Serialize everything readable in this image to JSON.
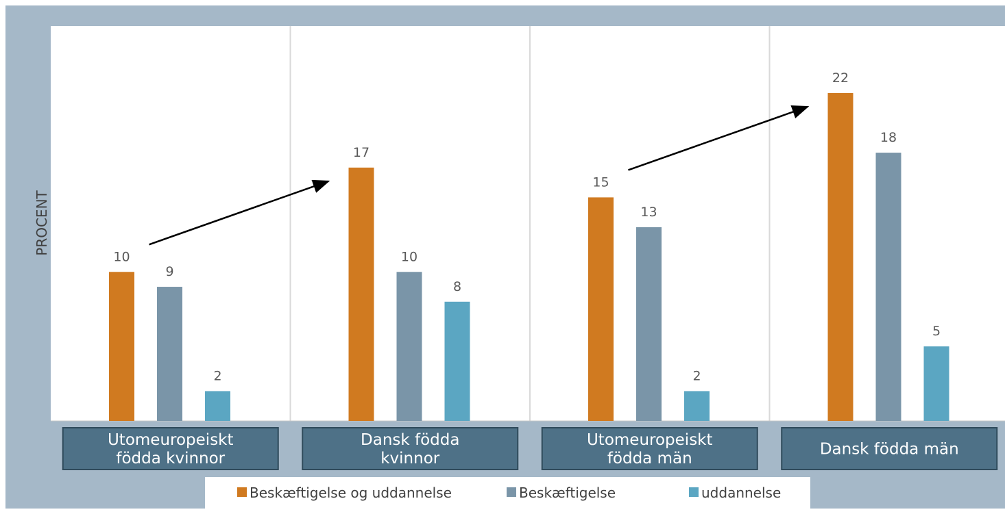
{
  "chart_data": {
    "type": "bar",
    "title": "",
    "ylabel": "PROCENT",
    "xlabel": "",
    "ylim": [
      0,
      26.5
    ],
    "categories": [
      [
        "Utomeuropeiskt",
        "födda kvinnor"
      ],
      [
        "Dansk födda",
        "kvinnor"
      ],
      [
        "Utomeuropeiskt",
        "födda män"
      ],
      [
        "Dansk födda män"
      ]
    ],
    "series": [
      {
        "name": "Beskæftigelse og uddannelse",
        "color": "#D07A20",
        "values": [
          10,
          17,
          15,
          22
        ]
      },
      {
        "name": "Beskæftigelse",
        "color": "#7A95A8",
        "values": [
          9,
          10,
          13,
          18
        ]
      },
      {
        "name": "uddannelse",
        "color": "#5BA6C2",
        "values": [
          2,
          8,
          2,
          5
        ]
      }
    ],
    "data_labels": true,
    "legend": "bottom",
    "grid": false,
    "annotations": [
      {
        "type": "arrow",
        "from_category": 0,
        "to_category": 1
      },
      {
        "type": "arrow",
        "from_category": 2,
        "to_category": 3
      }
    ],
    "colors": {
      "frame": "#A5B8C8",
      "category_box": "#4E7187",
      "category_box_border": "#2F4A5B",
      "divider": "#D9D9D9"
    }
  }
}
